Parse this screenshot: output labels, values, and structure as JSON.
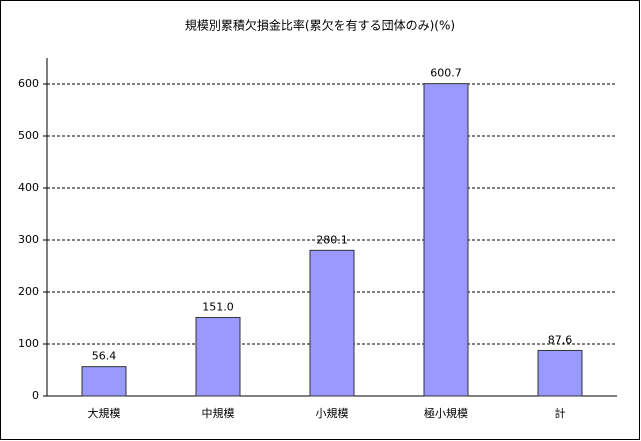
{
  "chart_data": {
    "type": "bar",
    "title": "規模別累積欠損金比率(累欠を有する団体のみ)(%)",
    "categories": [
      "大規模",
      "中規模",
      "小規模",
      "極小規模",
      "計"
    ],
    "values": [
      56.4,
      151.0,
      280.1,
      600.7,
      87.6
    ],
    "value_labels": [
      "56.4",
      "151.0",
      "280.1",
      "600.7",
      "87.6"
    ],
    "color": "#9999ff",
    "ylim": [
      0,
      650
    ],
    "yticks": [
      0,
      100,
      200,
      300,
      400,
      500,
      600
    ],
    "grid": true
  }
}
